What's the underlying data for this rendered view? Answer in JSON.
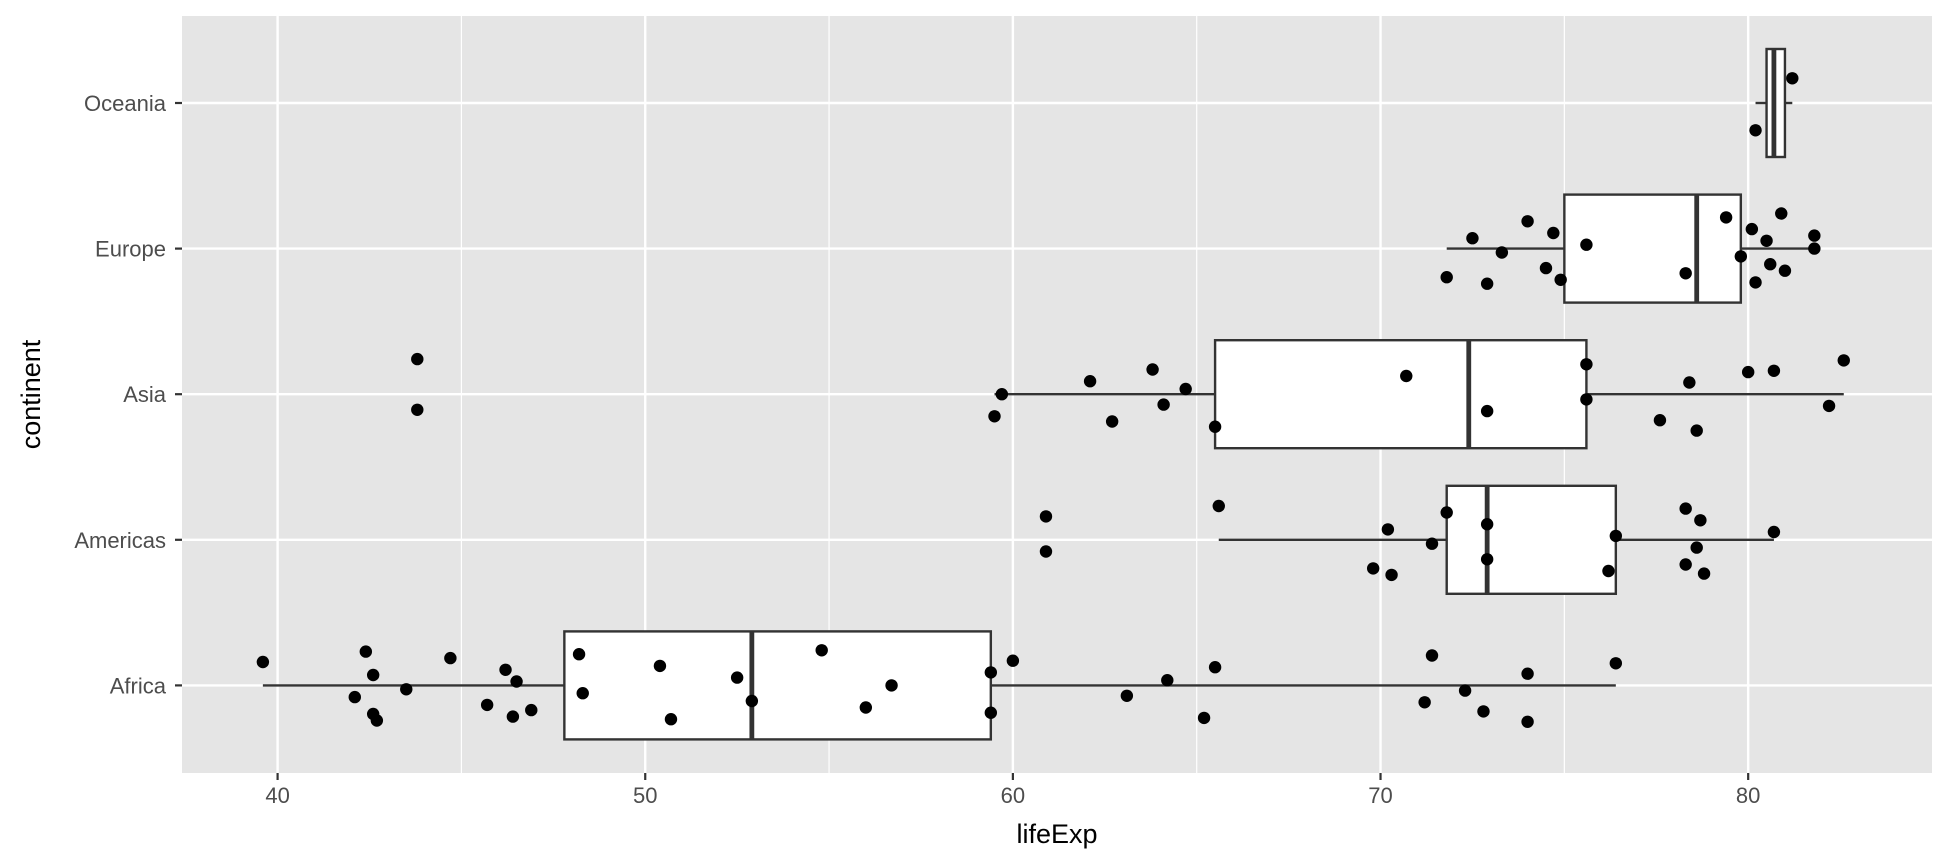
{
  "chart_data": {
    "type": "boxplot",
    "orientation": "horizontal",
    "xlabel": "lifeExp",
    "ylabel": "continent",
    "xlim": [
      37.4,
      85.0
    ],
    "x_ticks": [
      40,
      50,
      60,
      70,
      80
    ],
    "x_tick_labels": [
      "40",
      "50",
      "60",
      "70",
      "80"
    ],
    "categories": [
      "Africa",
      "Americas",
      "Asia",
      "Europe",
      "Oceania"
    ],
    "grid": true,
    "legend": "none",
    "colors": {
      "panel": "#e5e5e5",
      "grid": "#ffffff",
      "box_fill": "#ffffff",
      "box_stroke": "#333333",
      "point": "#000000"
    },
    "boxes": [
      {
        "category": "Africa",
        "whisker_low": 39.6,
        "q1": 47.8,
        "median": 52.9,
        "q3": 59.4,
        "whisker_high": 76.4
      },
      {
        "category": "Americas",
        "whisker_low": 65.6,
        "q1": 71.8,
        "median": 72.9,
        "q3": 76.4,
        "whisker_high": 80.7
      },
      {
        "category": "Asia",
        "whisker_low": 59.5,
        "q1": 65.5,
        "median": 72.4,
        "q3": 75.6,
        "whisker_high": 82.6
      },
      {
        "category": "Europe",
        "whisker_low": 71.8,
        "q1": 75.0,
        "median": 78.6,
        "q3": 79.8,
        "whisker_high": 81.8
      },
      {
        "category": "Oceania",
        "whisker_low": 80.2,
        "q1": 80.5,
        "median": 80.7,
        "q3": 81.0,
        "whisker_high": 81.2
      }
    ],
    "points": [
      {
        "category": "Africa",
        "values": [
          39.6,
          42.1,
          42.4,
          42.6,
          42.6,
          42.7,
          43.5,
          44.7,
          45.7,
          46.2,
          46.4,
          46.5,
          46.9,
          48.2,
          48.3,
          50.4,
          50.7,
          52.5,
          52.9,
          54.8,
          56.0,
          56.7,
          59.4,
          59.4,
          60.0,
          63.1,
          64.2,
          65.2,
          65.5,
          71.2,
          71.4,
          72.3,
          72.8,
          74.0,
          74.0,
          76.4
        ]
      },
      {
        "category": "Americas",
        "values": [
          60.9,
          60.9,
          65.6,
          69.8,
          70.2,
          70.3,
          71.4,
          71.8,
          72.9,
          72.9,
          76.2,
          76.4,
          78.3,
          78.3,
          78.6,
          78.7,
          78.8,
          80.7
        ]
      },
      {
        "category": "Asia",
        "values": [
          43.8,
          43.8,
          59.5,
          59.7,
          62.1,
          62.7,
          63.8,
          64.1,
          64.7,
          65.5,
          70.7,
          72.9,
          75.6,
          75.6,
          77.6,
          78.4,
          78.6,
          80.0,
          80.7,
          82.2,
          82.6
        ]
      },
      {
        "category": "Europe",
        "values": [
          71.8,
          72.5,
          72.9,
          73.3,
          74.0,
          74.5,
          74.7,
          74.9,
          75.6,
          78.3,
          79.4,
          79.8,
          80.1,
          80.2,
          80.5,
          80.6,
          80.9,
          81.0,
          81.8,
          81.8
        ]
      },
      {
        "category": "Oceania",
        "values": [
          80.2,
          81.2
        ]
      }
    ]
  }
}
